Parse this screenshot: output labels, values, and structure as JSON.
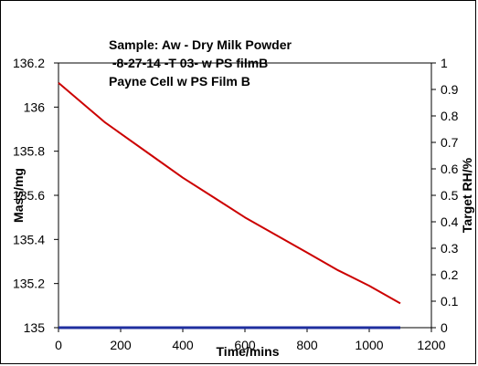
{
  "chart_data": {
    "type": "line",
    "title_lines": [
      "Sample:  Aw - Dry Milk Powder",
      " -8-27-14 -T 03- w PS filmB",
      "Payne Cell w PS Film B"
    ],
    "xlabel": "Time/mins",
    "ylabel": "Mass/mg",
    "y2label": "Target RH/%",
    "xlim": [
      0,
      1200
    ],
    "ylim": [
      135,
      136.2
    ],
    "y2lim": [
      0,
      1
    ],
    "x_ticks": [
      "0",
      "200",
      "400",
      "600",
      "800",
      "1000",
      "1200"
    ],
    "y_ticks": [
      "135",
      "135.2",
      "135.4",
      "135.6",
      "135.8",
      "136",
      "136.2"
    ],
    "y2_ticks": [
      "0",
      "0.1",
      "0.2",
      "0.3",
      "0.4",
      "0.5",
      "0.6",
      "0.7",
      "0.8",
      "0.9",
      "1"
    ],
    "grid": false,
    "series": [
      {
        "axis": "left",
        "color": "#cc0000",
        "x": [
          0,
          50,
          100,
          150,
          200,
          300,
          400,
          500,
          600,
          700,
          800,
          900,
          1000,
          1100
        ],
        "y": [
          136.11,
          136.05,
          135.99,
          135.93,
          135.88,
          135.78,
          135.68,
          135.59,
          135.5,
          135.42,
          135.34,
          135.26,
          135.19,
          135.11
        ]
      },
      {
        "axis": "right",
        "color": "#1f2f9f",
        "x": [
          0,
          1100
        ],
        "y": [
          0,
          0
        ]
      }
    ]
  }
}
